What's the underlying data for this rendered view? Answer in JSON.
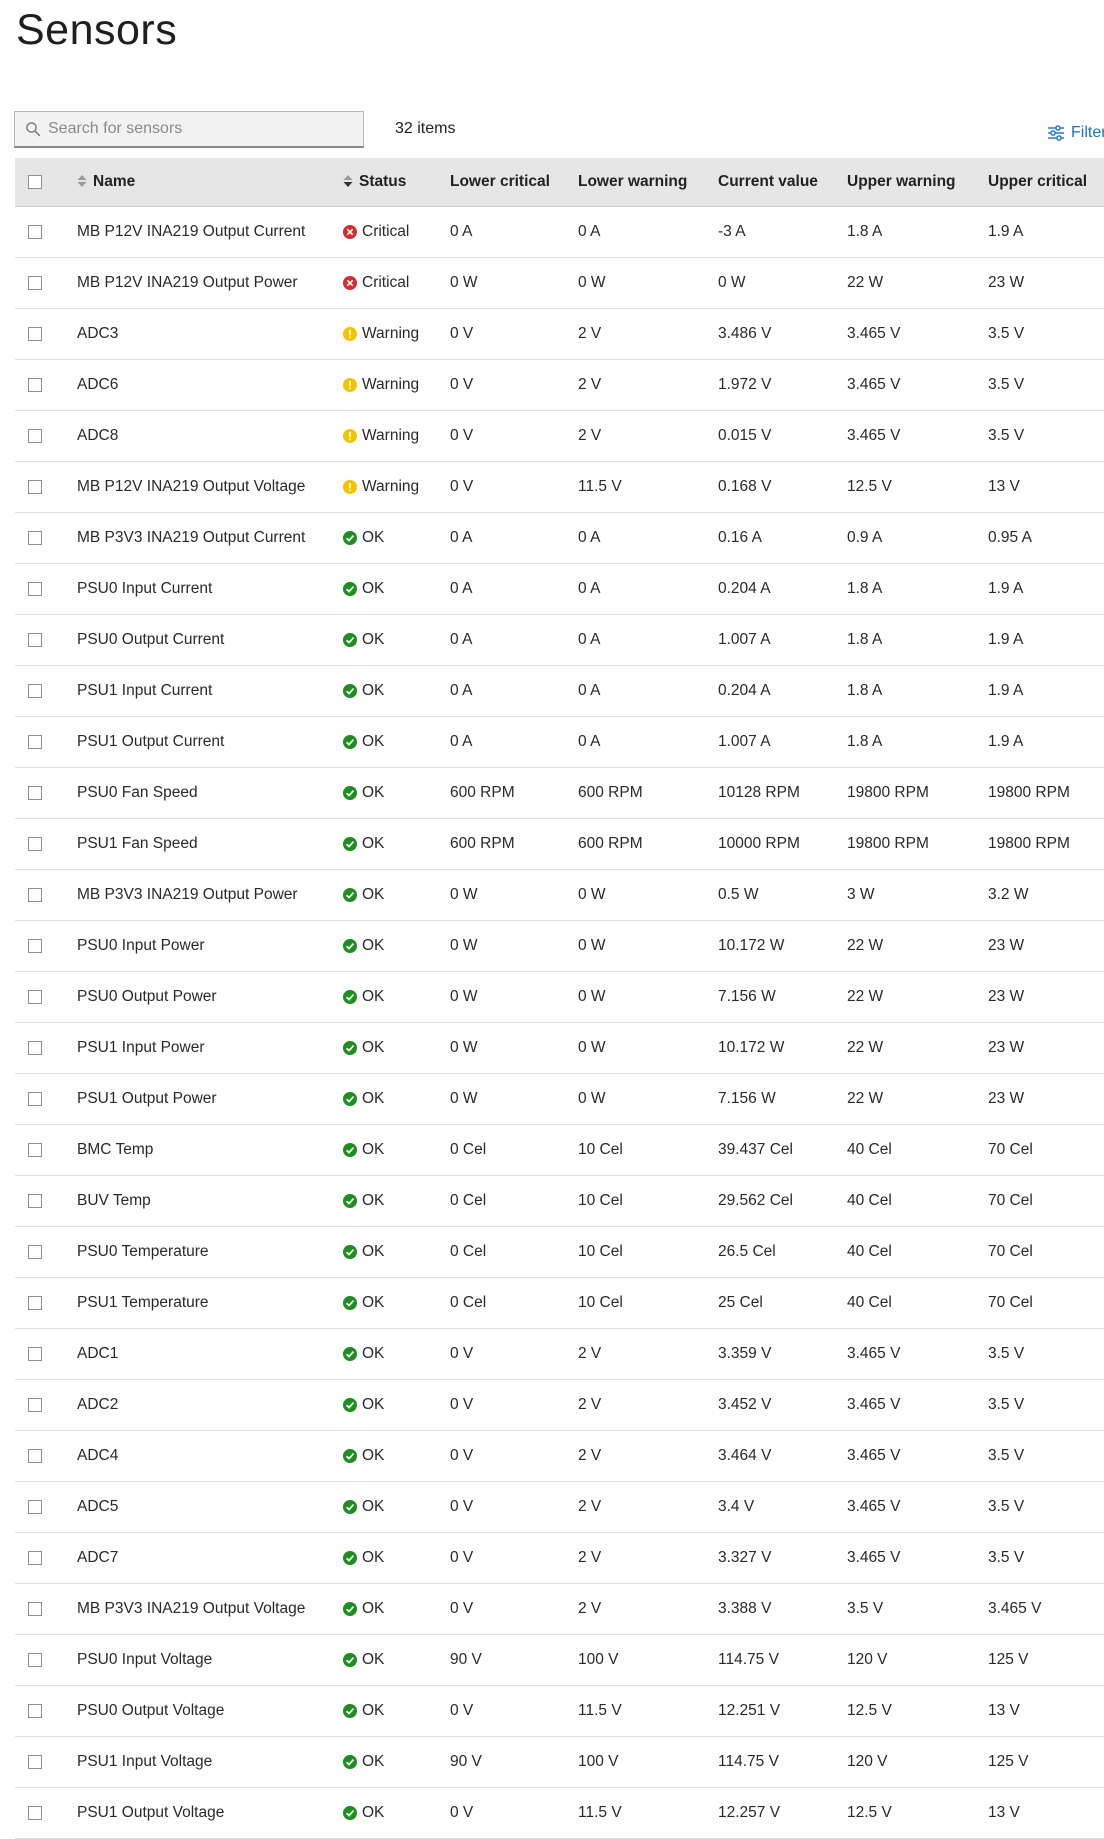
{
  "page": {
    "title": "Sensors"
  },
  "toolbar": {
    "search_placeholder": "Search for sensors",
    "item_count": "32 items",
    "filter_label": "Filter"
  },
  "table": {
    "columns": [
      "Name",
      "Status",
      "Lower critical",
      "Lower warning",
      "Current value",
      "Upper warning",
      "Upper critical"
    ],
    "status_colors": {
      "Critical": "#d32f2f",
      "Warning": "#f5c400",
      "OK": "#1e8e1e"
    },
    "rows": [
      {
        "name": "MB P12V INA219 Output Current",
        "status": "Critical",
        "lower_critical": "0 A",
        "lower_warning": "0 A",
        "current": "-3 A",
        "upper_warning": "1.8 A",
        "upper_critical": "1.9 A"
      },
      {
        "name": "MB P12V INA219 Output Power",
        "status": "Critical",
        "lower_critical": "0 W",
        "lower_warning": "0 W",
        "current": "0 W",
        "upper_warning": "22 W",
        "upper_critical": "23 W"
      },
      {
        "name": "ADC3",
        "status": "Warning",
        "lower_critical": "0 V",
        "lower_warning": "2 V",
        "current": "3.486 V",
        "upper_warning": "3.465 V",
        "upper_critical": "3.5 V"
      },
      {
        "name": "ADC6",
        "status": "Warning",
        "lower_critical": "0 V",
        "lower_warning": "2 V",
        "current": "1.972 V",
        "upper_warning": "3.465 V",
        "upper_critical": "3.5 V"
      },
      {
        "name": "ADC8",
        "status": "Warning",
        "lower_critical": "0 V",
        "lower_warning": "2 V",
        "current": "0.015 V",
        "upper_warning": "3.465 V",
        "upper_critical": "3.5 V"
      },
      {
        "name": "MB P12V INA219 Output Voltage",
        "status": "Warning",
        "lower_critical": "0 V",
        "lower_warning": "11.5 V",
        "current": "0.168 V",
        "upper_warning": "12.5 V",
        "upper_critical": "13 V"
      },
      {
        "name": "MB P3V3 INA219 Output Current",
        "status": "OK",
        "lower_critical": "0 A",
        "lower_warning": "0 A",
        "current": "0.16 A",
        "upper_warning": "0.9 A",
        "upper_critical": "0.95 A"
      },
      {
        "name": "PSU0 Input Current",
        "status": "OK",
        "lower_critical": "0 A",
        "lower_warning": "0 A",
        "current": "0.204 A",
        "upper_warning": "1.8 A",
        "upper_critical": "1.9 A"
      },
      {
        "name": "PSU0 Output Current",
        "status": "OK",
        "lower_critical": "0 A",
        "lower_warning": "0 A",
        "current": "1.007 A",
        "upper_warning": "1.8 A",
        "upper_critical": "1.9 A"
      },
      {
        "name": "PSU1 Input Current",
        "status": "OK",
        "lower_critical": "0 A",
        "lower_warning": "0 A",
        "current": "0.204 A",
        "upper_warning": "1.8 A",
        "upper_critical": "1.9 A"
      },
      {
        "name": "PSU1 Output Current",
        "status": "OK",
        "lower_critical": "0 A",
        "lower_warning": "0 A",
        "current": "1.007 A",
        "upper_warning": "1.8 A",
        "upper_critical": "1.9 A"
      },
      {
        "name": "PSU0 Fan Speed",
        "status": "OK",
        "lower_critical": "600 RPM",
        "lower_warning": "600 RPM",
        "current": "10128 RPM",
        "upper_warning": "19800 RPM",
        "upper_critical": "19800 RPM"
      },
      {
        "name": "PSU1 Fan Speed",
        "status": "OK",
        "lower_critical": "600 RPM",
        "lower_warning": "600 RPM",
        "current": "10000 RPM",
        "upper_warning": "19800 RPM",
        "upper_critical": "19800 RPM"
      },
      {
        "name": "MB P3V3 INA219 Output Power",
        "status": "OK",
        "lower_critical": "0 W",
        "lower_warning": "0 W",
        "current": "0.5 W",
        "upper_warning": "3 W",
        "upper_critical": "3.2 W"
      },
      {
        "name": "PSU0 Input Power",
        "status": "OK",
        "lower_critical": "0 W",
        "lower_warning": "0 W",
        "current": "10.172 W",
        "upper_warning": "22 W",
        "upper_critical": "23 W"
      },
      {
        "name": "PSU0 Output Power",
        "status": "OK",
        "lower_critical": "0 W",
        "lower_warning": "0 W",
        "current": "7.156 W",
        "upper_warning": "22 W",
        "upper_critical": "23 W"
      },
      {
        "name": "PSU1 Input Power",
        "status": "OK",
        "lower_critical": "0 W",
        "lower_warning": "0 W",
        "current": "10.172 W",
        "upper_warning": "22 W",
        "upper_critical": "23 W"
      },
      {
        "name": "PSU1 Output Power",
        "status": "OK",
        "lower_critical": "0 W",
        "lower_warning": "0 W",
        "current": "7.156 W",
        "upper_warning": "22 W",
        "upper_critical": "23 W"
      },
      {
        "name": "BMC Temp",
        "status": "OK",
        "lower_critical": "0 Cel",
        "lower_warning": "10 Cel",
        "current": "39.437 Cel",
        "upper_warning": "40 Cel",
        "upper_critical": "70 Cel"
      },
      {
        "name": "BUV Temp",
        "status": "OK",
        "lower_critical": "0 Cel",
        "lower_warning": "10 Cel",
        "current": "29.562 Cel",
        "upper_warning": "40 Cel",
        "upper_critical": "70 Cel"
      },
      {
        "name": "PSU0 Temperature",
        "status": "OK",
        "lower_critical": "0 Cel",
        "lower_warning": "10 Cel",
        "current": "26.5 Cel",
        "upper_warning": "40 Cel",
        "upper_critical": "70 Cel"
      },
      {
        "name": "PSU1 Temperature",
        "status": "OK",
        "lower_critical": "0 Cel",
        "lower_warning": "10 Cel",
        "current": "25 Cel",
        "upper_warning": "40 Cel",
        "upper_critical": "70 Cel"
      },
      {
        "name": "ADC1",
        "status": "OK",
        "lower_critical": "0 V",
        "lower_warning": "2 V",
        "current": "3.359 V",
        "upper_warning": "3.465 V",
        "upper_critical": "3.5 V"
      },
      {
        "name": "ADC2",
        "status": "OK",
        "lower_critical": "0 V",
        "lower_warning": "2 V",
        "current": "3.452 V",
        "upper_warning": "3.465 V",
        "upper_critical": "3.5 V"
      },
      {
        "name": "ADC4",
        "status": "OK",
        "lower_critical": "0 V",
        "lower_warning": "2 V",
        "current": "3.464 V",
        "upper_warning": "3.465 V",
        "upper_critical": "3.5 V"
      },
      {
        "name": "ADC5",
        "status": "OK",
        "lower_critical": "0 V",
        "lower_warning": "2 V",
        "current": "3.4 V",
        "upper_warning": "3.465 V",
        "upper_critical": "3.5 V"
      },
      {
        "name": "ADC7",
        "status": "OK",
        "lower_critical": "0 V",
        "lower_warning": "2 V",
        "current": "3.327 V",
        "upper_warning": "3.465 V",
        "upper_critical": "3.5 V"
      },
      {
        "name": "MB P3V3 INA219 Output Voltage",
        "status": "OK",
        "lower_critical": "0 V",
        "lower_warning": "2 V",
        "current": "3.388 V",
        "upper_warning": "3.5 V",
        "upper_critical": "3.465 V"
      },
      {
        "name": "PSU0 Input Voltage",
        "status": "OK",
        "lower_critical": "90 V",
        "lower_warning": "100 V",
        "current": "114.75 V",
        "upper_warning": "120 V",
        "upper_critical": "125 V"
      },
      {
        "name": "PSU0 Output Voltage",
        "status": "OK",
        "lower_critical": "0 V",
        "lower_warning": "11.5 V",
        "current": "12.251 V",
        "upper_warning": "12.5 V",
        "upper_critical": "13 V"
      },
      {
        "name": "PSU1 Input Voltage",
        "status": "OK",
        "lower_critical": "90 V",
        "lower_warning": "100 V",
        "current": "114.75 V",
        "upper_warning": "120 V",
        "upper_critical": "125 V"
      },
      {
        "name": "PSU1 Output Voltage",
        "status": "OK",
        "lower_critical": "0 V",
        "lower_warning": "11.5 V",
        "current": "12.257 V",
        "upper_warning": "12.5 V",
        "upper_critical": "13 V"
      }
    ]
  }
}
